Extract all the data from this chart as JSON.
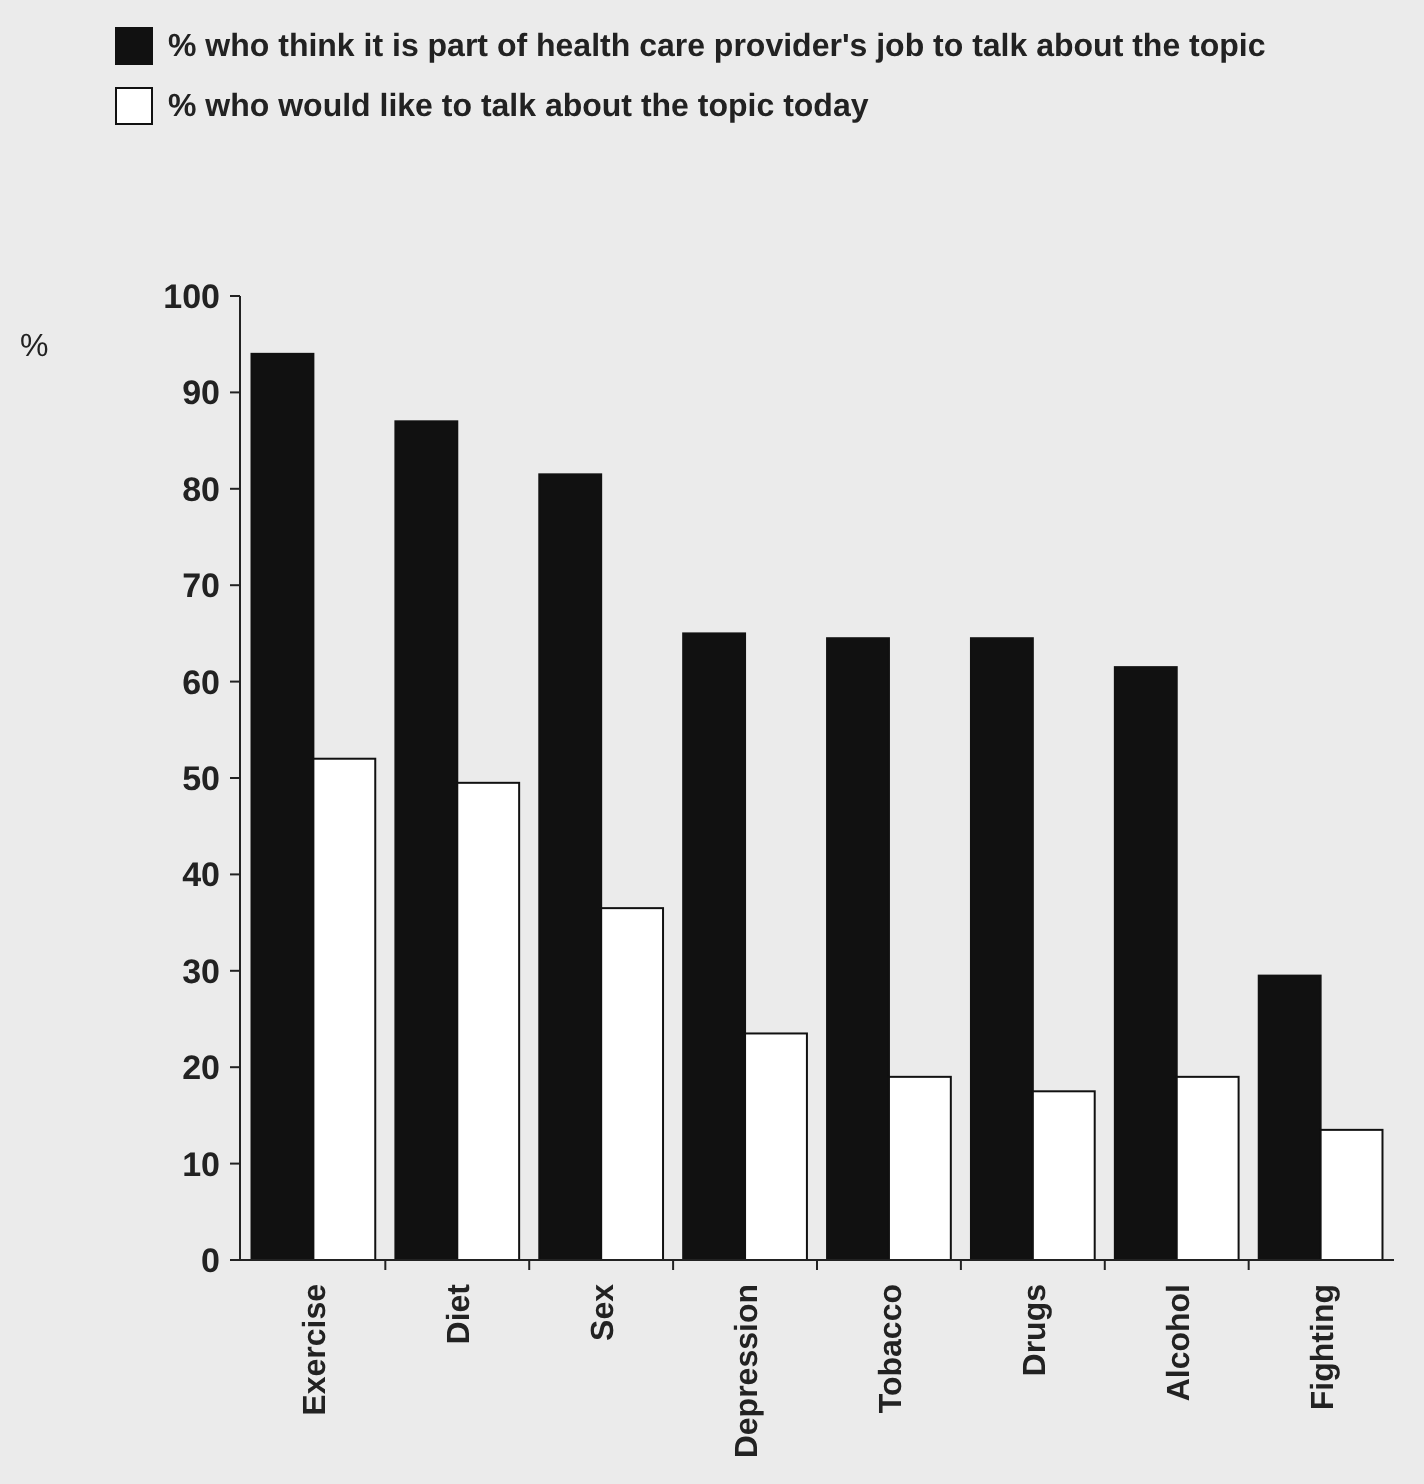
{
  "chart_data": {
    "type": "bar",
    "ylabel": "%",
    "categories": [
      "Exercise",
      "Diet",
      "Sex",
      "Depression",
      "Tobacco",
      "Drugs",
      "Alcohol",
      "Fighting"
    ],
    "series": [
      {
        "name": "% who think it is part of health care provider's job to talk about the topic",
        "color": "#111111",
        "values": [
          94,
          87,
          81.5,
          65,
          64.5,
          64.5,
          61.5,
          29.5
        ]
      },
      {
        "name": "% who would like to talk about the topic today",
        "color": "#ffffff",
        "values": [
          52,
          49.5,
          36.5,
          23.5,
          19,
          17.5,
          19,
          13.5
        ]
      }
    ],
    "ylim": [
      0,
      100
    ],
    "yticks": [
      0,
      10,
      20,
      30,
      40,
      50,
      60,
      70,
      80,
      90,
      100
    ],
    "legend": "top left"
  }
}
